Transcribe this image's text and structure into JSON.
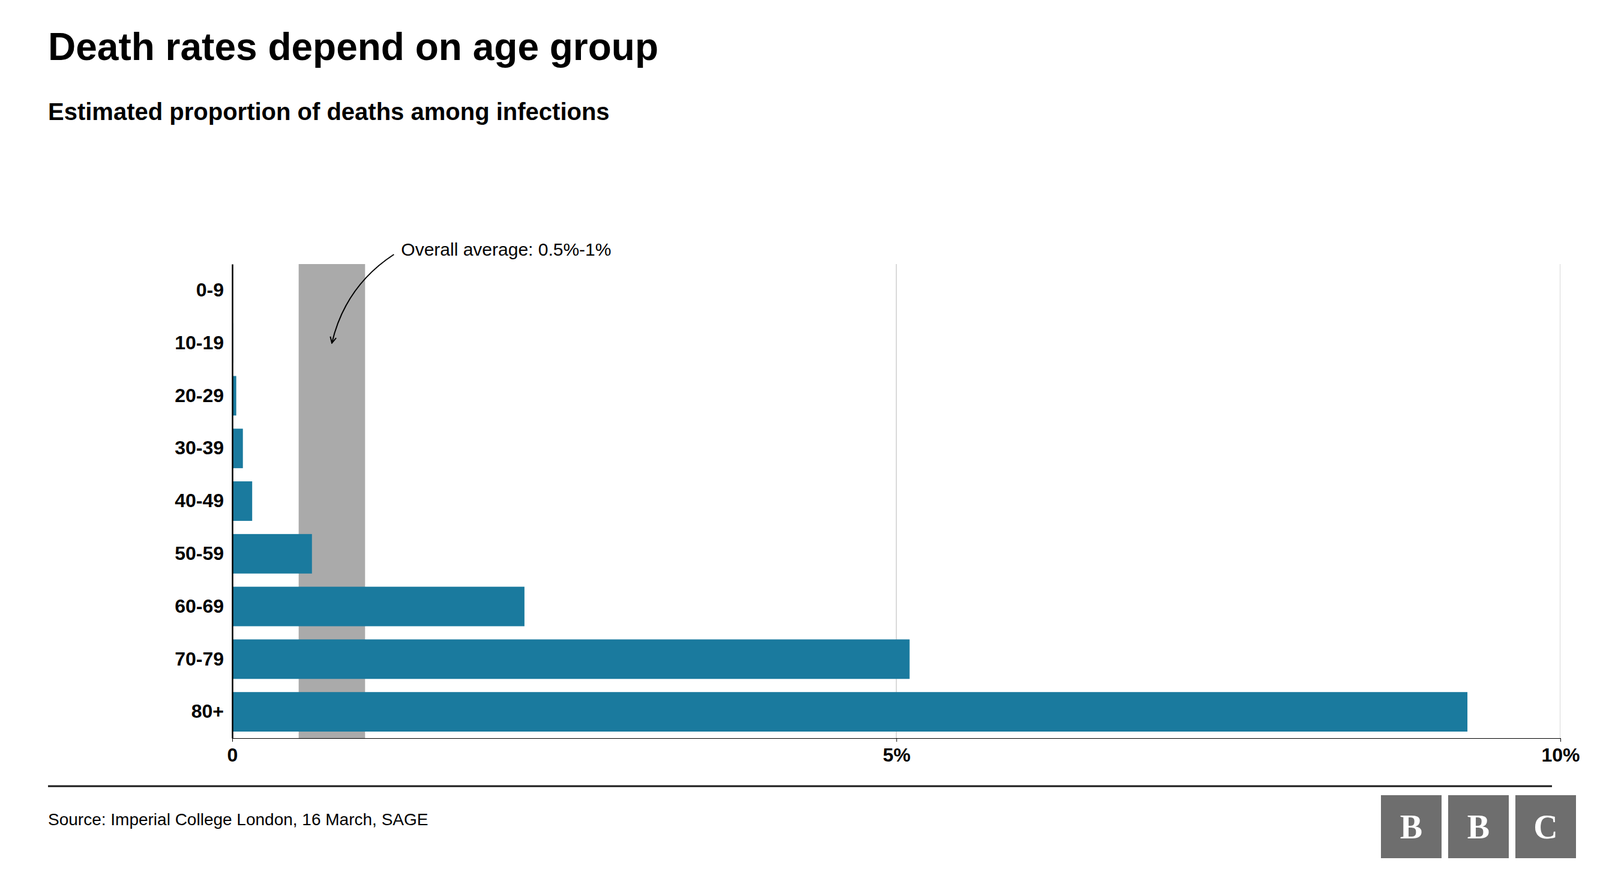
{
  "chart_data": {
    "type": "bar",
    "orientation": "horizontal",
    "title": "Death rates depend on age group",
    "subtitle": "Estimated proportion of deaths among infections",
    "source": "Source: Imperial College London, 16 March, SAGE",
    "logo": "BBC",
    "categories": [
      "0-9",
      "10-19",
      "20-29",
      "30-39",
      "40-49",
      "50-59",
      "60-69",
      "70-79",
      "80+"
    ],
    "values": [
      0.002,
      0.006,
      0.03,
      0.08,
      0.15,
      0.6,
      2.2,
      5.1,
      9.3
    ],
    "color": "#1a7a9e",
    "overall_average": {
      "values": [
        0.5,
        1.0
      ],
      "color": "#aaaaaa"
    },
    "annotation": "Overall average: 0.5%-1%",
    "xlim": [
      0,
      10
    ],
    "xticks": [
      0,
      {
        "value": 5,
        "label": "5%"
      },
      {
        "value": 10,
        "label": "10%"
      }
    ],
    "grid": true
  }
}
